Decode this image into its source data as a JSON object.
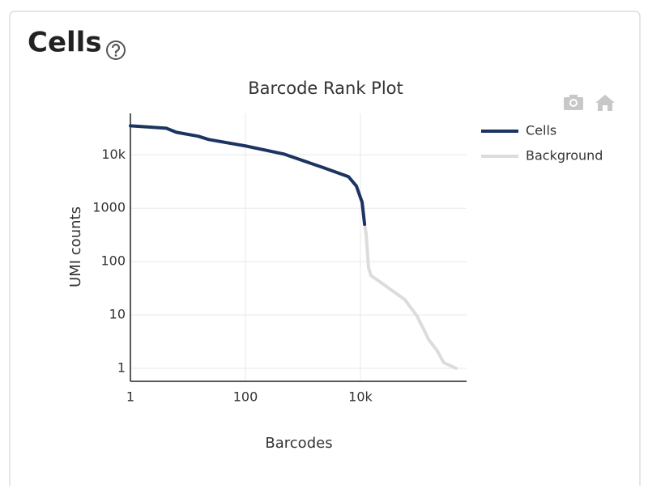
{
  "header": {
    "title": "Cells"
  },
  "chart_data": {
    "type": "line",
    "title": "Barcode Rank Plot",
    "x_label": "Barcodes",
    "y_label": "UMI counts",
    "xscale": "log",
    "yscale": "log",
    "grid": true,
    "xlim": [
      1,
      700000
    ],
    "ylim": [
      0.57,
      60000
    ],
    "xticks": [
      1,
      100,
      {
        "value": 10000,
        "label": "10k"
      }
    ],
    "yticks": [
      1,
      10,
      100,
      1000,
      {
        "value": 10000,
        "label": "10k"
      }
    ],
    "legend": "right",
    "series": [
      {
        "name": "Cells",
        "color": "#1b3461",
        "x": [
          1,
          4.2,
          6.3,
          15.2,
          23,
          100,
          460,
          2330,
          6200,
          8500,
          10700,
          11800
        ],
        "values": [
          35000,
          31600,
          26500,
          22300,
          19400,
          14700,
          10400,
          5700,
          3900,
          2600,
          1290,
          500
        ]
      },
      {
        "name": "Background",
        "color": "#dcdcdc",
        "x": [
          11800,
          12600,
          13800,
          15200,
          26500,
          59000,
          96000,
          155000,
          215000,
          280000,
          460000
        ],
        "values": [
          500,
          316,
          78,
          55,
          36,
          19.4,
          9.6,
          3.4,
          2.15,
          1.28,
          1
        ]
      }
    ]
  }
}
